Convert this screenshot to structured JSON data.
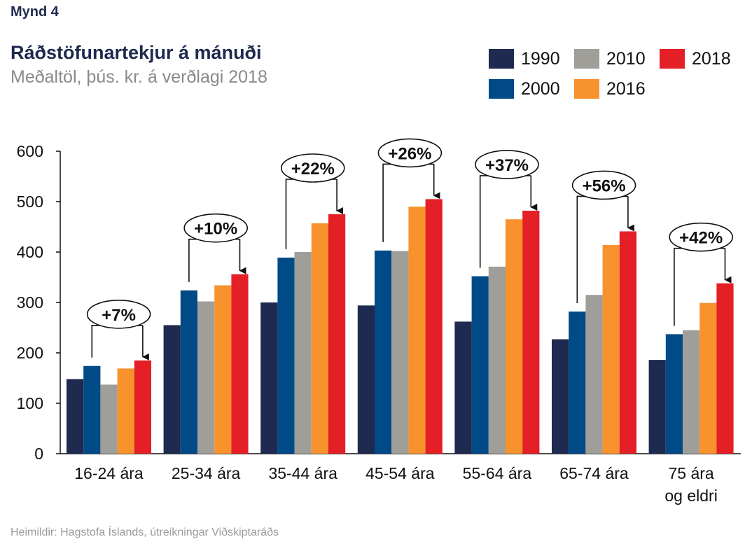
{
  "figure_label": "Mynd 4",
  "source": "Heimildir: Hagstofa Íslands, útreikningar Viðskiptaráðs",
  "chart_data": {
    "type": "bar",
    "title": "Ráðstöfunartekjur á mánuði",
    "subtitle": "Meðaltöl, þús. kr. á verðlagi 2018",
    "categories": [
      "16-24 ára",
      "25-34 ára",
      "35-44 ára",
      "45-54 ára",
      "55-64 ára",
      "65-74 ára",
      "75 ára og eldri"
    ],
    "series": [
      {
        "name": "1990",
        "color": "#1e2a4f",
        "values": [
          148,
          255,
          300,
          294,
          262,
          227,
          186
        ]
      },
      {
        "name": "2000",
        "color": "#004b87",
        "values": [
          174,
          324,
          389,
          403,
          352,
          282,
          237
        ]
      },
      {
        "name": "2010",
        "color": "#a09e99",
        "values": [
          137,
          302,
          400,
          402,
          371,
          315,
          245
        ]
      },
      {
        "name": "2016",
        "color": "#f7922d",
        "values": [
          169,
          334,
          457,
          490,
          465,
          414,
          299
        ]
      },
      {
        "name": "2018",
        "color": "#e41f26",
        "values": [
          185,
          356,
          475,
          505,
          482,
          441,
          338
        ]
      }
    ],
    "annotations": [
      "+7%",
      "+10%",
      "+22%",
      "+26%",
      "+37%",
      "+56%",
      "+42%"
    ],
    "ylim": [
      0,
      600
    ],
    "yticks": [
      "0",
      "100",
      "200",
      "300",
      "400",
      "500",
      "600"
    ],
    "legend_position": "top-right",
    "grid": false
  }
}
